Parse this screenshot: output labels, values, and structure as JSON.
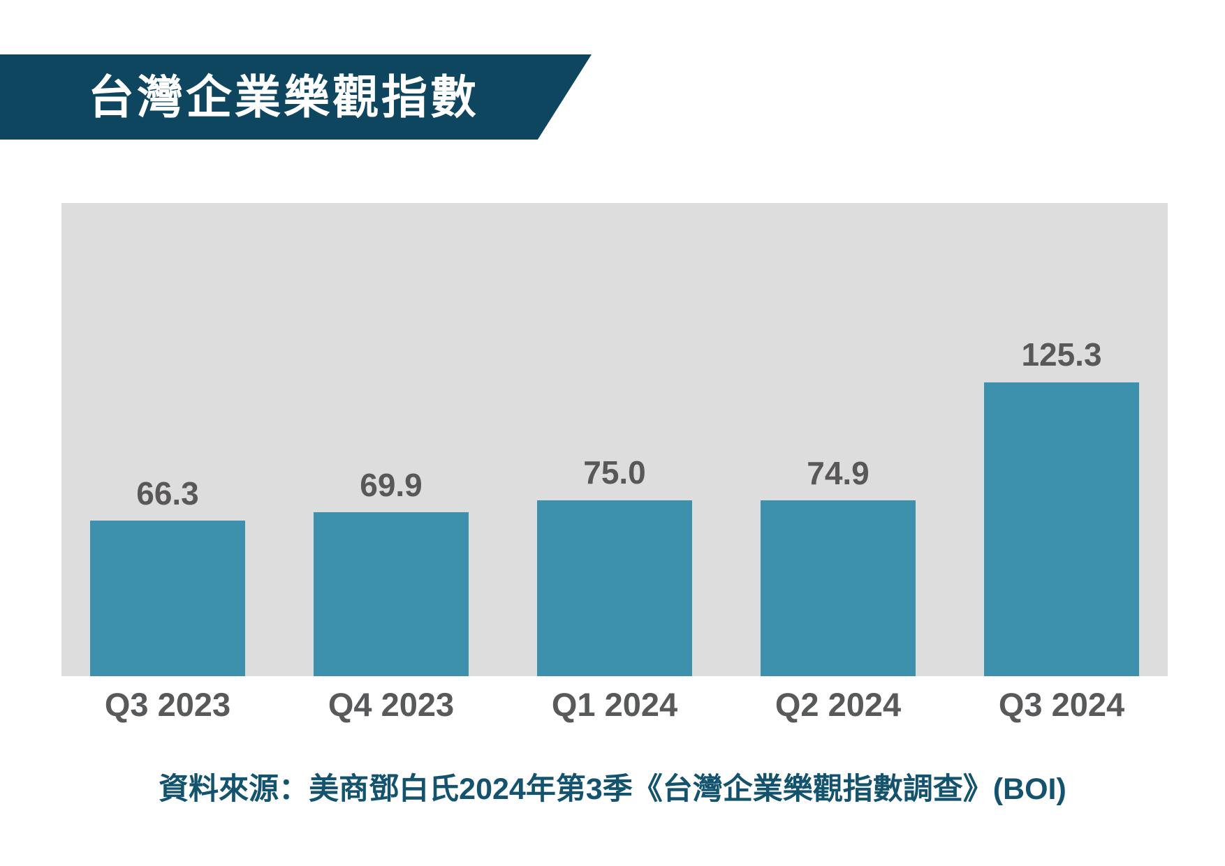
{
  "banner": {
    "title": "台灣企業樂觀指數"
  },
  "colors": {
    "banner_bg": "#0e465f",
    "banner_text": "#ffffff",
    "plot_bg": "#dddddd",
    "bar": "#3e91ac",
    "value_label": "#595757",
    "axis_label": "#58595b",
    "source_text": "#14536e",
    "page_bg": "#ffffff"
  },
  "chart_data": {
    "type": "bar",
    "title": "台灣企業樂觀指數",
    "categories": [
      "Q3 2023",
      "Q4 2023",
      "Q1 2024",
      "Q2 2024",
      "Q3 2024"
    ],
    "values": [
      66.3,
      69.9,
      75.0,
      74.9,
      125.3
    ],
    "data_labels": [
      "66.3",
      "69.9",
      "75.0",
      "74.9",
      "125.3"
    ],
    "xlabel": "",
    "ylabel": "",
    "ylim": [
      0,
      201
    ],
    "grid": false,
    "legend": false,
    "axes_shown": false,
    "bar_color": "#3e91ac",
    "plot_background": "#dddddd",
    "value_labels_position": "above-bars"
  },
  "source": {
    "text": "資料來源：美商鄧白氏2024年第3季《台灣企業樂觀指數調查》(BOI)"
  }
}
